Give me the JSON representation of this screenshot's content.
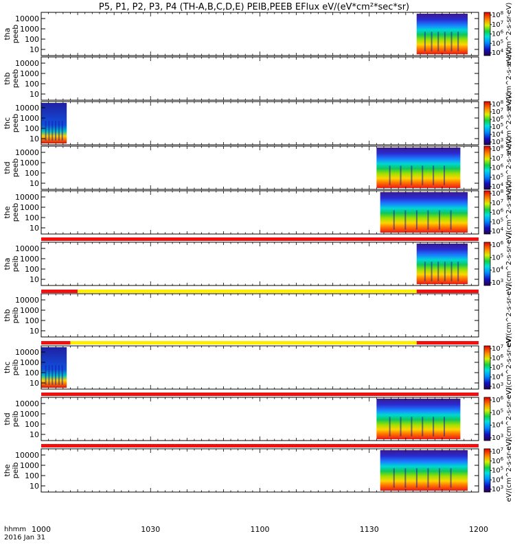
{
  "chart_data": {
    "type": "heatmap",
    "title": "P5, P1, P2, P3, P4 (TH-A,B,C,D,E) PEIB,PEEB EFlux eV/(eV*cm²*sec*sr)",
    "time_label": "hhmm",
    "date_label": "2016 Jan 31",
    "x_range": [
      1000,
      1200
    ],
    "x_ticks": [
      "1000",
      "1030",
      "1100",
      "1130",
      "1200"
    ],
    "colormap": "rainbow (purple-blue-cyan-green-yellow-red)",
    "panels": [
      {
        "name": "tha peeb",
        "ylabel_lines": [
          "tha",
          "peeb"
        ],
        "yticks": [
          "10000",
          "1000",
          "100",
          "10"
        ],
        "cbar_label": "eV/(cm^2-s-sr-eV)",
        "cbar_ticks": [
          "10^8",
          "10^7",
          "10^6",
          "10^5",
          "10^4"
        ],
        "data_extent": [
          1143,
          1157
        ],
        "mode_bar": null
      },
      {
        "name": "thb peeb",
        "ylabel_lines": [
          "thb",
          "peeb"
        ],
        "yticks": [
          "10000",
          "1000",
          "100",
          "10"
        ],
        "cbar_label": "eV/(cm^2-s-sr-eV)",
        "cbar_ticks": [],
        "data_extent": null,
        "mode_bar": null
      },
      {
        "name": "thc peeb",
        "ylabel_lines": [
          "thc",
          "peeb"
        ],
        "yticks": [
          "10000",
          "1000",
          "100",
          "10"
        ],
        "cbar_label": "eV/(cm^2-s-sr-eV)",
        "cbar_ticks": [
          "10^8",
          "10^7",
          "10^6",
          "10^5",
          "10^4",
          "10^3"
        ],
        "data_extent": [
          1000,
          1007
        ],
        "mode_bar": null
      },
      {
        "name": "thd peeb",
        "ylabel_lines": [
          "thd",
          "peeb"
        ],
        "yticks": [
          "10000",
          "1000",
          "100",
          "10"
        ],
        "cbar_label": "eV/(cm^2-s-sr-eV)",
        "cbar_ticks": [
          "10^8",
          "10^7",
          "10^6",
          "10^5",
          "10^4"
        ],
        "data_extent": [
          1132,
          1155
        ],
        "mode_bar": null
      },
      {
        "name": "the peeb",
        "ylabel_lines": [
          "the",
          "peeb"
        ],
        "yticks": [
          "10000",
          "1000",
          "100",
          "10"
        ],
        "cbar_label": "eV/(cm^2-s-sr-eV)",
        "cbar_ticks": [
          "10^8",
          "10^7",
          "10^6",
          "10^5",
          "10^4"
        ],
        "data_extent": [
          1133,
          1157
        ],
        "mode_bar": null
      },
      {
        "name": "tha peib",
        "ylabel_lines": [
          "tha",
          "peib"
        ],
        "yticks": [
          "10000",
          "1000",
          "100",
          "10"
        ],
        "cbar_label": "eV/(cm^2-s-sr-eV)",
        "cbar_ticks": [
          "10^6",
          "10^5",
          "10^4",
          "10^3"
        ],
        "data_extent": [
          1143,
          1157
        ],
        "mode_bar": [
          {
            "from": 1000,
            "to": 1200,
            "color": "red"
          }
        ]
      },
      {
        "name": "thb peib",
        "ylabel_lines": [
          "thb",
          "peib"
        ],
        "yticks": [
          "10000",
          "1000",
          "100",
          "10"
        ],
        "cbar_label": "eV/(cm^2-s-sr-eV)",
        "cbar_ticks": [],
        "data_extent": null,
        "mode_bar": [
          {
            "from": 1000,
            "to": 1010,
            "color": "red"
          },
          {
            "from": 1010,
            "to": 1143,
            "color": "yellow"
          },
          {
            "from": 1143,
            "to": 1200,
            "color": "red"
          }
        ]
      },
      {
        "name": "thc peib",
        "ylabel_lines": [
          "thc",
          "peib"
        ],
        "yticks": [
          "10000",
          "1000",
          "100",
          "10"
        ],
        "cbar_label": "eV/(cm^2-s-sr-eV)",
        "cbar_ticks": [
          "10^7",
          "10^6",
          "10^5",
          "10^4",
          "10^3"
        ],
        "data_extent": [
          1000,
          1007
        ],
        "mode_bar": [
          {
            "from": 1000,
            "to": 1008,
            "color": "red"
          },
          {
            "from": 1008,
            "to": 1143,
            "color": "yellow"
          },
          {
            "from": 1143,
            "to": 1200,
            "color": "red"
          }
        ]
      },
      {
        "name": "thd peib",
        "ylabel_lines": [
          "thd",
          "peib"
        ],
        "yticks": [
          "10000",
          "1000",
          "100",
          "10"
        ],
        "cbar_label": "eV/(cm^2-s-sr-eV)",
        "cbar_ticks": [
          "10^6",
          "10^5",
          "10^4",
          "10^3"
        ],
        "data_extent": [
          1132,
          1155
        ],
        "mode_bar": [
          {
            "from": 1000,
            "to": 1200,
            "color": "red"
          }
        ]
      },
      {
        "name": "the peib",
        "ylabel_lines": [
          "the",
          "peib"
        ],
        "yticks": [
          "10000",
          "1000",
          "100",
          "10"
        ],
        "cbar_label": "eV/(cm^2-s-sr-eV)",
        "cbar_ticks": [
          "10^7",
          "10^6",
          "10^5",
          "10^4",
          "10^3"
        ],
        "data_extent": [
          1133,
          1157
        ],
        "mode_bar": [
          {
            "from": 1000,
            "to": 1200,
            "color": "red"
          }
        ]
      }
    ]
  }
}
